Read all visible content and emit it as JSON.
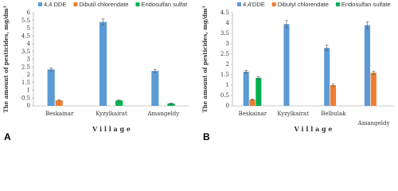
{
  "chart_data": [
    {
      "type": "bar",
      "panel_label": "A",
      "y_label": "The amount of pesticides, mg/dm³",
      "x_label": "V i l l a g e",
      "categories": [
        "Beskainar",
        "Kyzylkairat",
        "Amangeldy"
      ],
      "series": [
        {
          "name": "4,4 DDE",
          "color": "#5b9bd5",
          "values": [
            2.35,
            5.4,
            2.25
          ],
          "errors": [
            0.1,
            0.2,
            0.1
          ]
        },
        {
          "name": "Dibutil chlorendate",
          "color": "#ed7d31",
          "values": [
            0.35,
            null,
            null
          ],
          "errors": [
            0.03,
            null,
            null
          ]
        },
        {
          "name": "Endosulfan sulfat",
          "color": "#00b050",
          "values": [
            null,
            0.35,
            0.15
          ],
          "errors": [
            null,
            0.03,
            0.02
          ]
        }
      ],
      "ylim": [
        0,
        6
      ],
      "yticks": [
        0,
        0.5,
        1,
        1.5,
        2,
        2.5,
        3,
        3.5,
        4,
        4.5,
        5,
        5.5,
        6
      ]
    },
    {
      "type": "bar",
      "panel_label": "B",
      "y_label": "The amount of pesticides, mg/dm³",
      "x_label": "V i l l a g e",
      "categories": [
        "Beskainar",
        "Kyzylkairat",
        "Belbulak",
        "Amangeldy"
      ],
      "series": [
        {
          "name": "4,4'DDE",
          "color": "#5b9bd5",
          "values": [
            1.65,
            3.95,
            2.8,
            3.9
          ],
          "errors": [
            0.07,
            0.18,
            0.13,
            0.17
          ]
        },
        {
          "name": "Dibutyl chlorendate",
          "color": "#ed7d31",
          "values": [
            0.3,
            null,
            1.0,
            1.6
          ],
          "errors": [
            0.03,
            null,
            0.05,
            0.07
          ]
        },
        {
          "name": "Endosulfan sulfate",
          "color": "#00b050",
          "values": [
            1.35,
            null,
            null,
            null
          ],
          "errors": [
            0.07,
            null,
            null,
            null
          ]
        }
      ],
      "ylim": [
        0,
        4.5
      ],
      "yticks": [
        0,
        0.5,
        1,
        1.5,
        2,
        2.5,
        3,
        3.5,
        4,
        4.5
      ]
    }
  ]
}
